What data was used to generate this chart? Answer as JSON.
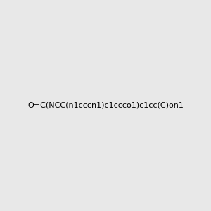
{
  "smiles": "O=C(NCC(n1cccn1)c1ccco1)c1cc(C)on1",
  "image_size": 300,
  "background_color": "#e8e8e8"
}
